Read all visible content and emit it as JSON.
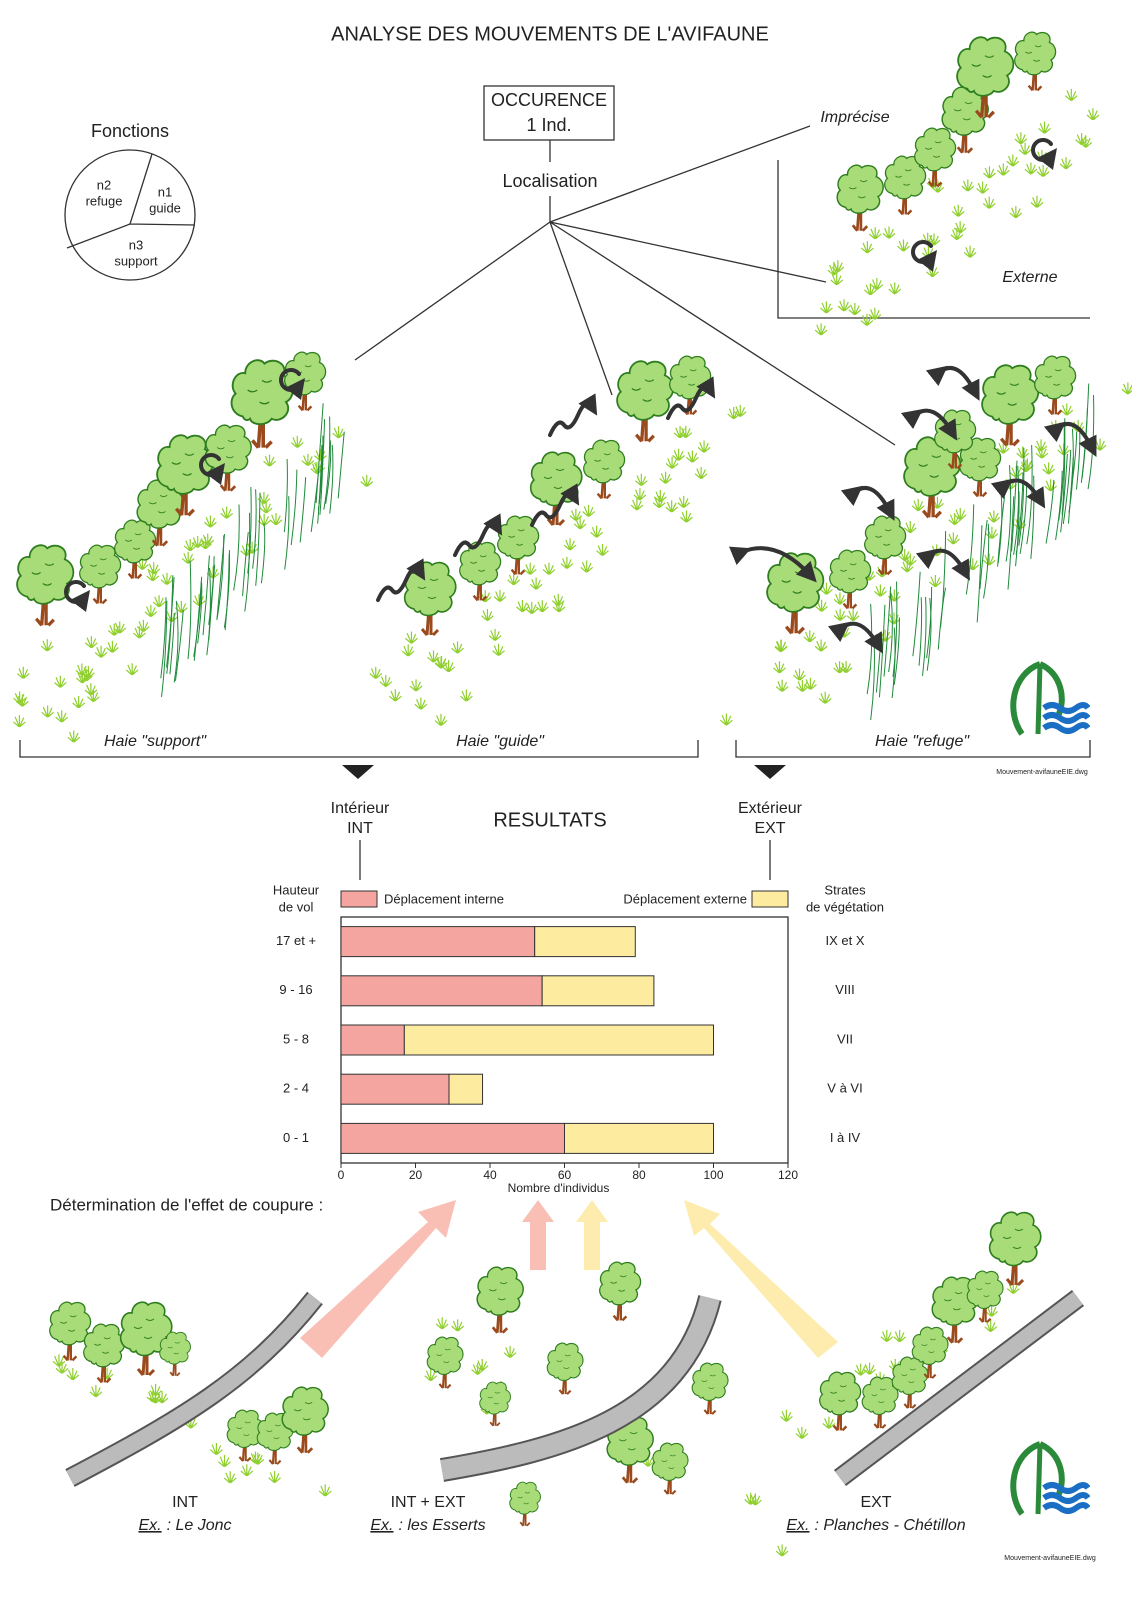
{
  "header": {
    "title": "ANALYSE DES MOUVEMENTS DE L'AVIFAUNE"
  },
  "functions": {
    "title": "Fonctions",
    "sectors": [
      {
        "code": "n1",
        "label": "guide"
      },
      {
        "code": "n2",
        "label": "refuge"
      },
      {
        "code": "n3",
        "label": "support"
      }
    ]
  },
  "occurrence": {
    "lines": [
      "OCCURENCE",
      "1 Ind."
    ]
  },
  "localisation": {
    "title": "Localisation",
    "imprecise": "Imprécise",
    "external": "Externe"
  },
  "hedges": [
    "Haie \"support\"",
    "Haie \"guide\"",
    "Haie \"refuge\""
  ],
  "file_name": "Mouvement-avifauneEIE.dwg",
  "results": {
    "title": "RESULTATS",
    "interior": [
      "Intérieur",
      "INT"
    ],
    "exterior": [
      "Extérieur",
      "EXT"
    ]
  },
  "chart_data": {
    "type": "bar",
    "orientation": "horizontal",
    "stacked": true,
    "y_axis_title": [
      "Hauteur",
      "de vol"
    ],
    "y2_axis_title": [
      "Strates",
      "de végétation"
    ],
    "categories": [
      "17 et +",
      "9 - 16",
      "5 - 8",
      "2 - 4",
      "0 - 1"
    ],
    "right_categories": [
      "IX et X",
      "VIII",
      "VII",
      "V à VI",
      "I à IV"
    ],
    "series": [
      {
        "name": "Déplacement interne",
        "color": "#f5a5a0",
        "values": [
          52,
          54,
          17,
          29,
          60
        ]
      },
      {
        "name": "Déplacement externe",
        "color": "#fdeba0",
        "values": [
          27,
          30,
          83,
          9,
          40
        ]
      }
    ],
    "xlim": [
      0,
      120
    ],
    "xticks": [
      0,
      20,
      40,
      60,
      80,
      100,
      120
    ],
    "xlabel": "Nombre d'individus"
  },
  "cut_effect": {
    "title": "Détermination de l'effet de coupure :",
    "cases": [
      {
        "label": "INT",
        "prefix": "Ex.",
        "example": ": Le Jonc"
      },
      {
        "label": "INT + EXT",
        "prefix": "Ex.",
        "example": ": les Esserts"
      },
      {
        "label": "EXT",
        "prefix": "Ex.",
        "example": ": Planches - Chétillon"
      }
    ]
  }
}
